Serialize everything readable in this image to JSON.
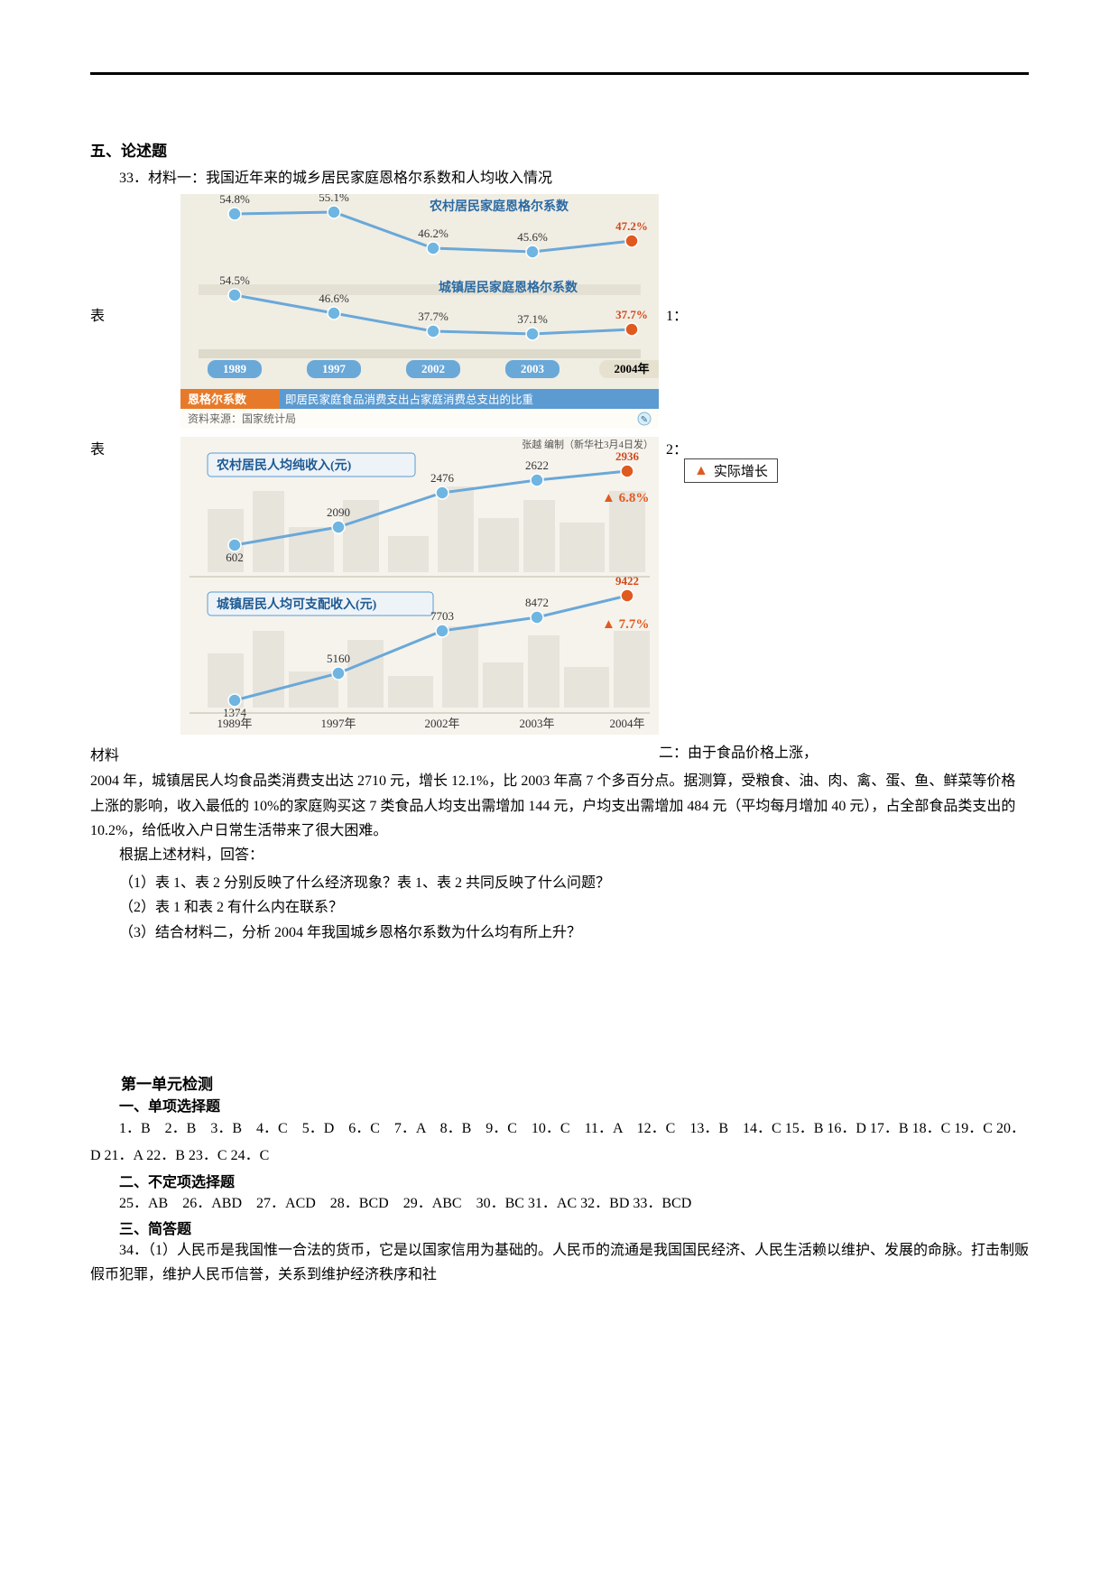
{
  "section5": {
    "title": "五、论述题"
  },
  "q33": {
    "prompt": "33．材料一：我国近年来的城乡居民家庭恩格尔系数和人均收入情况",
    "table1_label_left": "表",
    "table1_label_right": "1：",
    "table2_label_left": "表",
    "table2_label_right": "2：",
    "material_label_left": "材料",
    "material_label_right": "二：由于食品价格上涨，",
    "legend_real_growth": "实际增长",
    "body1": "2004 年，城镇居民人均食品类消费支出达 2710 元，增长 12.1%，比 2003 年高 7 个多百分点。据测算，受粮食、油、肉、禽、蛋、鱼、鲜菜等价格上涨的影响，收入最低的 10%的家庭购买这 7 类食品人均支出需增加 144 元，户均支出需增加 484 元（平均每月增加 40 元），占全部食品类支出的 10.2%，给低收入户日常生活带来了很大困难。",
    "prompt2": "根据上述材料，回答：",
    "sub1": "（1）表 1、表 2 分别反映了什么经济现象？表 1、表 2 共同反映了什么问题？",
    "sub2": "（2）表 1 和表 2 有什么内在联系？",
    "sub3": "（3）结合材料二，分析 2004 年我国城乡恩格尔系数为什么均有所上升？"
  },
  "chart1": {
    "bg": "#f5f3ec",
    "panel_bg": "#f0ede3",
    "line_rural_color": "#6aa8d8",
    "line_urban_color": "#6aa8d8",
    "point_color": "#6fb5e1",
    "point_latest_color": "#e05a1f",
    "year_box_bg": "#6aa8d8",
    "year_box_latest_bg": "#e6e1cf",
    "year_box_text": "#ffffff",
    "year_box_latest_text": "#000000",
    "label_rural": "农村居民家庭恩格尔系数",
    "label_urban": "城镇居民家庭恩格尔系数",
    "years": [
      "1989",
      "1997",
      "2002",
      "2003",
      "2004年"
    ],
    "rural_values": [
      "54.8%",
      "55.1%",
      "46.2%",
      "45.6%",
      "47.2%"
    ],
    "urban_values": [
      "54.5%",
      "46.6%",
      "37.7%",
      "37.1%",
      "37.7%"
    ],
    "footer_orange_bg": "#e77a2a",
    "footer_orange_text": "恩格尔系数",
    "footer_blue_bg": "#5c9bd1",
    "footer_blue_text": "即居民家庭食品消费支出占家庭消费总支出的比重",
    "source": "资料来源：国家统计局",
    "credit": "张越 编制（新华社3月4日发）",
    "font_pt": 13
  },
  "chart2": {
    "bg": "#f5f3ec",
    "line_color": "#6aa8d8",
    "point_color": "#6fb5e1",
    "point_latest_color": "#e05a1f",
    "growth_tri_color": "#e05a1f",
    "series_rural_label": "农村居民人均纯收入(元)",
    "series_urban_label": "城镇居民人均可支配收入(元)",
    "years": [
      "1989年",
      "1997年",
      "2002年",
      "2003年",
      "2004年"
    ],
    "rural_values": [
      "602",
      "2090",
      "2476",
      "2622",
      "2936"
    ],
    "urban_values": [
      "1374",
      "5160",
      "7703",
      "8472",
      "9422"
    ],
    "rural_growth": "6.8%",
    "urban_growth": "7.7%",
    "box_border": "#5c9bd1",
    "box_bg": "#eef3f8",
    "font_pt": 13,
    "backdrop_color": "#d9d6cc"
  },
  "answers": {
    "title": "第一单元检测",
    "single_title": "一、单项选择题",
    "single_line": "1．B　2．B　3．B　4．C　5．D　6．C　7．A　8．B　9．C　10．C　11．A　12．C　13．B　14．C 15．B 16．D 17．B 18．C 19．C 20．D 21．A 22．B 23．C 24．C",
    "multi_title": "二、不定项选择题",
    "multi_line": "25．AB　26．ABD　27．ACD　28．BCD　29．ABC　30．BC 31．AC 32．BD 33．BCD",
    "short_title": "三、简答题",
    "short_34": "34．（1）人民币是我国惟一合法的货币，它是以国家信用为基础的。人民币的流通是我国国民经济、人民生活赖以维护、发展的命脉。打击制贩假币犯罪，维护人民币信誉，关系到维护经济秩序和社"
  }
}
